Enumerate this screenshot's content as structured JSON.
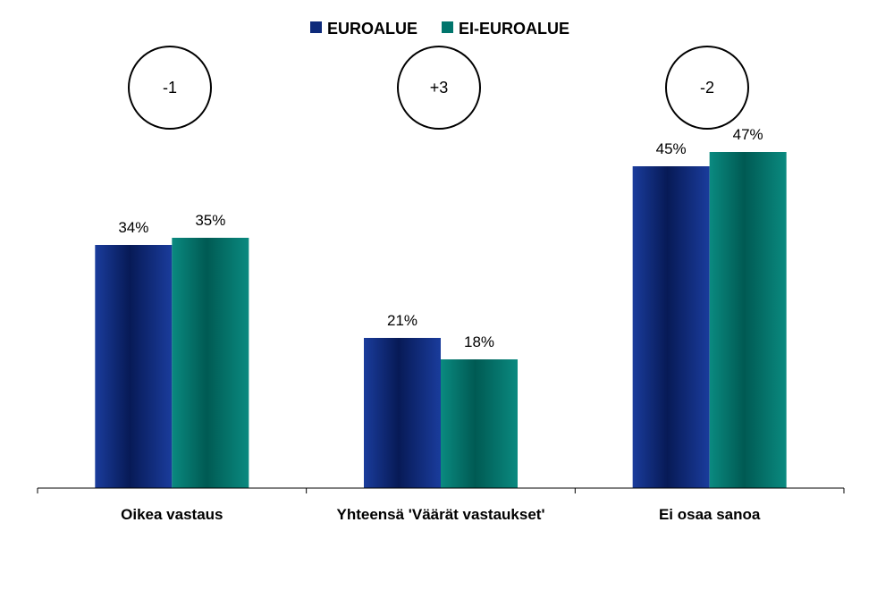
{
  "chart_data": {
    "type": "bar",
    "categories": [
      "Oikea vastaus",
      "Yhteensä 'Väärät vastaukset'",
      "Ei osaa sanoa"
    ],
    "series": [
      {
        "name": "EUROALUE",
        "values": [
          34,
          21,
          45
        ],
        "labels": [
          "34%",
          "21%",
          "45%"
        ],
        "color": "#0d2a7a"
      },
      {
        "name": "EI-EUROALUE",
        "values": [
          35,
          18,
          47
        ],
        "labels": [
          "35%",
          "18%",
          "47%"
        ],
        "color": "#00756c"
      }
    ],
    "annotations": [
      "-1",
      "+3",
      "-2"
    ],
    "ylim": [
      0,
      47
    ],
    "legend_position": "top-center",
    "grid": false,
    "title": "",
    "xlabel": "",
    "ylabel": ""
  }
}
